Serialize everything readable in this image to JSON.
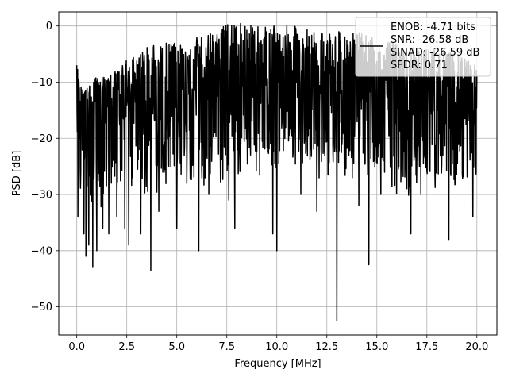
{
  "chart_data": {
    "type": "line",
    "title": "",
    "xlabel": "Frequency [MHz]",
    "ylabel": "PSD [dB]",
    "xlim": [
      -0.9,
      21.0
    ],
    "ylim": [
      -55,
      2.5
    ],
    "x_ticks": [
      0.0,
      2.5,
      5.0,
      7.5,
      10.0,
      12.5,
      15.0,
      17.5,
      20.0
    ],
    "x_tick_labels": [
      "0.0",
      "2.5",
      "5.0",
      "7.5",
      "10.0",
      "12.5",
      "15.0",
      "17.5",
      "20.0"
    ],
    "y_ticks": [
      0,
      -10,
      -20,
      -30,
      -40,
      -50
    ],
    "y_tick_labels": [
      "0",
      "−10",
      "−20",
      "−30",
      "−40",
      "−50"
    ],
    "grid": true,
    "legend_position": "top-right",
    "line_color": "#000000",
    "series": [
      {
        "name": "",
        "legend_lines": [
          "ENOB: -4.71 bits",
          "SNR: -26.58 dB",
          "SINAD: -26.59 dB",
          "SFDR: 0.71"
        ],
        "x_range": [
          0,
          20
        ],
        "baseline_points": [
          [
            0,
            -11
          ],
          [
            0.5,
            -15
          ],
          [
            1,
            -16
          ],
          [
            2,
            -14
          ],
          [
            3,
            -13
          ],
          [
            5,
            -11
          ],
          [
            7,
            -10
          ],
          [
            8,
            -9
          ],
          [
            10,
            -9
          ],
          [
            12,
            -10
          ],
          [
            14,
            -11
          ],
          [
            16,
            -12
          ],
          [
            18,
            -13
          ],
          [
            20,
            -14
          ]
        ],
        "peak_points": [
          [
            0.0,
            -7
          ],
          [
            0.3,
            -12
          ],
          [
            1.0,
            -9
          ],
          [
            2.0,
            -8
          ],
          [
            2.5,
            -6
          ],
          [
            3.0,
            -5
          ],
          [
            3.2,
            -4
          ],
          [
            4.0,
            -3
          ],
          [
            5.0,
            -3
          ],
          [
            6.0,
            -2
          ],
          [
            7.0,
            -1
          ],
          [
            7.6,
            1
          ],
          [
            8.8,
            0
          ],
          [
            10.0,
            0
          ],
          [
            11.0,
            0
          ],
          [
            12.0,
            -1
          ],
          [
            13.0,
            -1
          ],
          [
            14.0,
            -1
          ],
          [
            15.0,
            -2
          ],
          [
            16.0,
            -3
          ],
          [
            17.0,
            -4
          ],
          [
            18.0,
            -4
          ],
          [
            19.0,
            -5
          ],
          [
            20.0,
            -7
          ]
        ],
        "deep_dips": [
          [
            0.05,
            -34
          ],
          [
            0.35,
            -37
          ],
          [
            0.45,
            -41
          ],
          [
            0.6,
            -39
          ],
          [
            0.8,
            -43
          ],
          [
            1.0,
            -40
          ],
          [
            1.3,
            -36
          ],
          [
            1.6,
            -37
          ],
          [
            2.0,
            -34
          ],
          [
            2.4,
            -36
          ],
          [
            2.6,
            -39
          ],
          [
            3.2,
            -37
          ],
          [
            3.7,
            -43.5
          ],
          [
            4.1,
            -33
          ],
          [
            5.0,
            -36
          ],
          [
            6.1,
            -40
          ],
          [
            6.6,
            -30
          ],
          [
            7.6,
            -31
          ],
          [
            7.9,
            -36
          ],
          [
            9.8,
            -37
          ],
          [
            10.0,
            -40
          ],
          [
            11.2,
            -30
          ],
          [
            12.0,
            -33
          ],
          [
            13.0,
            -52.5
          ],
          [
            14.1,
            -32
          ],
          [
            14.6,
            -42.5
          ],
          [
            15.2,
            -30
          ],
          [
            16.7,
            -37
          ],
          [
            17.2,
            -30
          ],
          [
            18.6,
            -38
          ],
          [
            19.8,
            -34
          ]
        ]
      }
    ]
  }
}
